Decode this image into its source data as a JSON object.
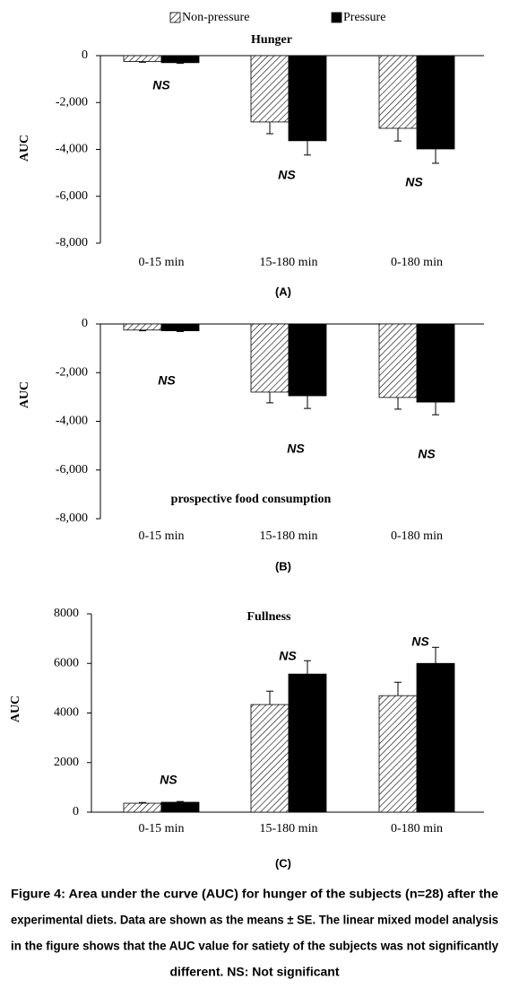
{
  "chart_data": [
    {
      "type": "bar",
      "title": "Hunger",
      "y_label": "AUC",
      "panel_label": "(A)",
      "categories": [
        "0-15 min",
        "15-180 min",
        "0-180 min"
      ],
      "series": [
        {
          "name": "Non-pressure",
          "color": "#000000",
          "pattern": "hatch",
          "values": [
            -250,
            -2830,
            -3100
          ],
          "errors": [
            30,
            500,
            540
          ]
        },
        {
          "name": "Pressure",
          "color": "#000000",
          "values": [
            -300,
            -3630,
            -3980
          ],
          "errors": [
            30,
            610,
            610
          ]
        }
      ],
      "annotations": [
        "NS",
        "NS",
        "NS"
      ],
      "ylim": [
        -8000,
        0
      ],
      "yticks": [
        {
          "value": -8000,
          "label": "-8,000"
        },
        {
          "value": -6000,
          "label": "-6,000"
        },
        {
          "value": -4000,
          "label": "-4,000"
        },
        {
          "value": -2000,
          "label": "-2,000"
        },
        0
      ]
    },
    {
      "type": "bar",
      "title": "prospective food consumption",
      "y_label": "AUC",
      "panel_label": "(B)",
      "categories": [
        "0-15 min",
        "15-180 min",
        "0-180 min"
      ],
      "series": [
        {
          "color": "#000000",
          "pattern": "hatch",
          "values": [
            -250,
            -2800,
            -3020
          ],
          "errors": [
            30,
            440,
            480
          ]
        },
        {
          "color": "#000000",
          "values": [
            -280,
            -2950,
            -3210
          ],
          "errors": [
            30,
            520,
            520
          ]
        }
      ],
      "annotations": [
        "NS",
        "NS",
        "NS"
      ],
      "ylim": [
        -8000,
        0
      ],
      "yticks": [
        {
          "value": -8000,
          "label": "-8,000"
        },
        {
          "value": -6000,
          "label": "-6,000"
        },
        {
          "value": -4000,
          "label": "-4,000"
        },
        {
          "value": -2000,
          "label": "-2,000"
        },
        0
      ]
    },
    {
      "type": "bar",
      "title": "Fullness",
      "y_label": "AUC",
      "panel_label": "(C)",
      "categories": [
        "0-15 min",
        "15-180 min",
        "0-180 min"
      ],
      "series": [
        {
          "color": "#000000",
          "pattern": "hatch",
          "values": [
            360,
            4340,
            4700
          ],
          "errors": [
            30,
            540,
            540
          ]
        },
        {
          "color": "#000000",
          "values": [
            400,
            5570,
            6000
          ],
          "errors": [
            30,
            540,
            650
          ]
        }
      ],
      "annotations": [
        "NS",
        "NS",
        "NS"
      ],
      "ylim": [
        0,
        8000
      ],
      "yticks": [
        0,
        2000,
        4000,
        6000,
        8000
      ]
    }
  ],
  "caption": [
    "Figure 4: Area under the curve (AUC) for hunger of the subjects (n=28) after the",
    "experimental diets. Data are shown as the means ± SE. The linear mixed model analysis",
    "in the figure shows that the AUC value for satiety of the subjects was not significantly",
    "different. NS: Not significant"
  ]
}
